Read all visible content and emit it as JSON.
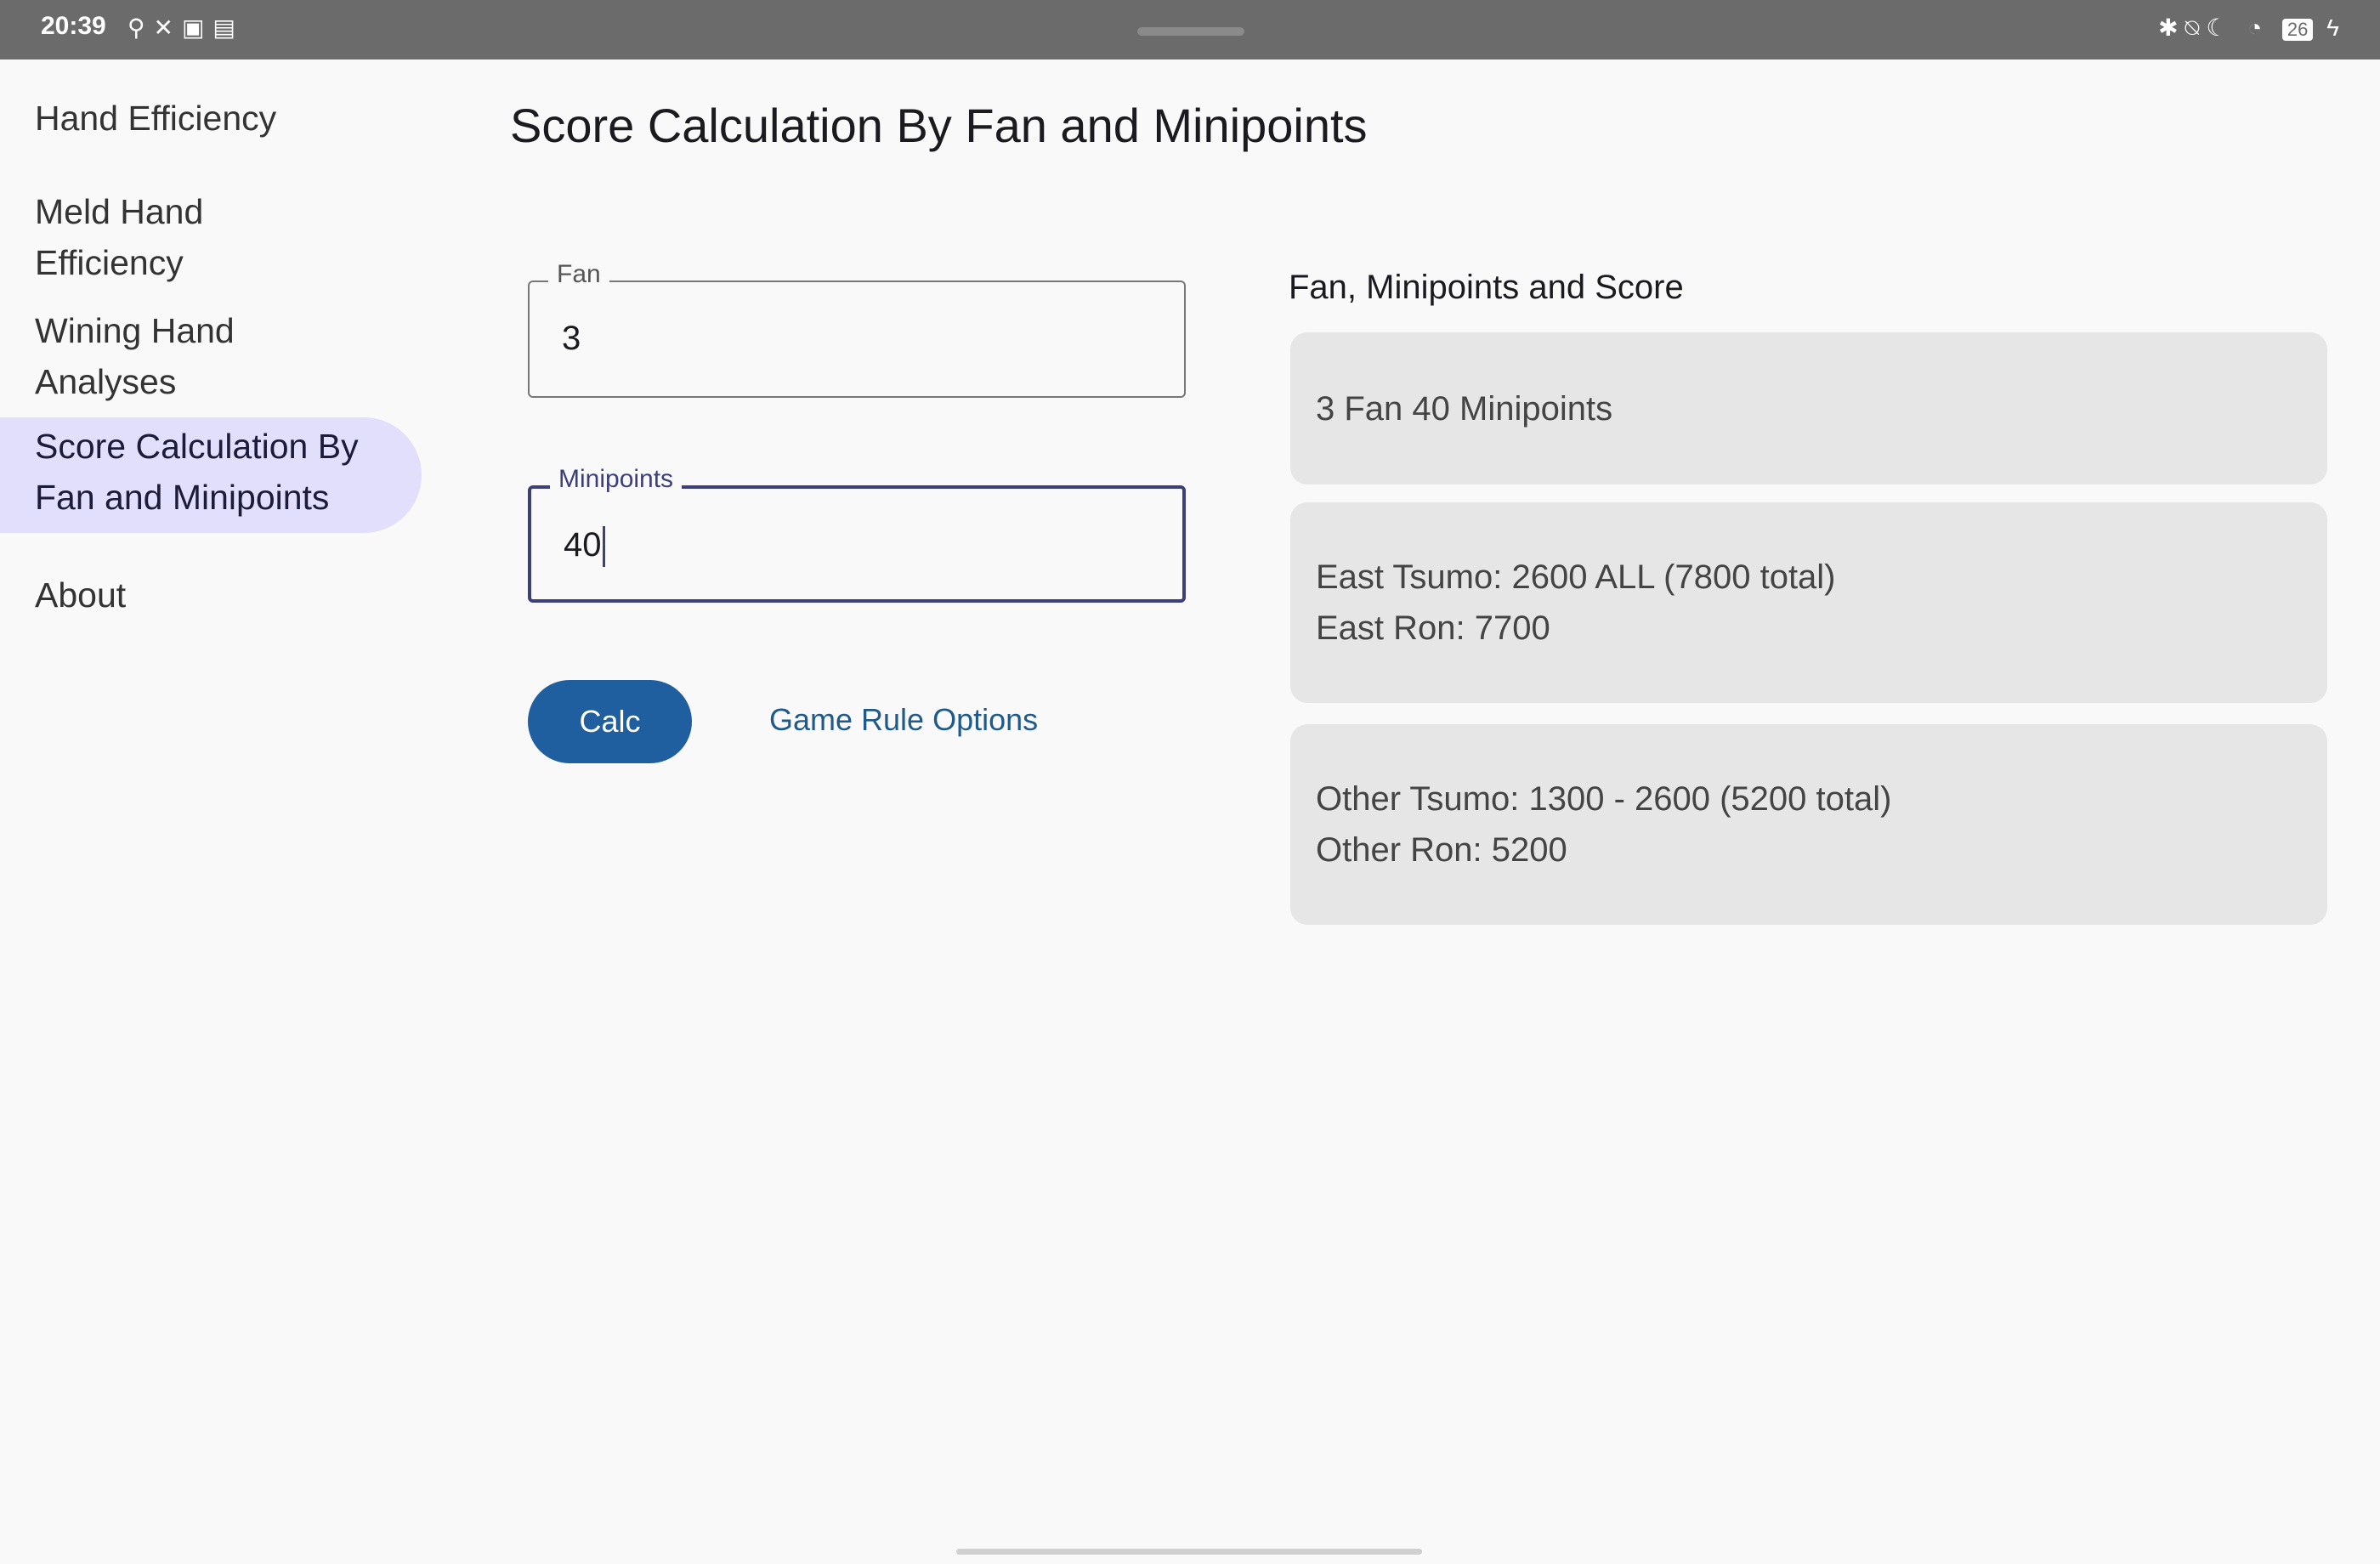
{
  "status_bar": {
    "time": "20:39",
    "battery": "26"
  },
  "sidebar": {
    "items": [
      {
        "label": "Hand Efficiency"
      },
      {
        "label": "Meld Hand Efficiency"
      },
      {
        "label": "Wining Hand Analyses"
      },
      {
        "label": "Score Calculation By Fan and Minipoints",
        "selected": true
      },
      {
        "label": "About"
      }
    ]
  },
  "main": {
    "title": "Score Calculation By Fan and Minipoints",
    "fan": {
      "label": "Fan",
      "value": "3"
    },
    "minipoints": {
      "label": "Minipoints",
      "value": "40"
    },
    "calc_label": "Calc",
    "rules_label": "Game Rule Options",
    "result": {
      "heading": "Fan, Minipoints and Score",
      "summary": "3 Fan 40 Minipoints",
      "east_tsumo": "East Tsumo: 2600 ALL (7800 total)",
      "east_ron": "East Ron: 7700",
      "other_tsumo": "Other Tsumo: 1300 - 2600 (5200 total)",
      "other_ron": "Other Ron: 5200"
    }
  },
  "colors": {
    "accent": "#1f5fa0",
    "selected_bg": "#e2dffc",
    "card_bg": "#e6e6e6"
  }
}
